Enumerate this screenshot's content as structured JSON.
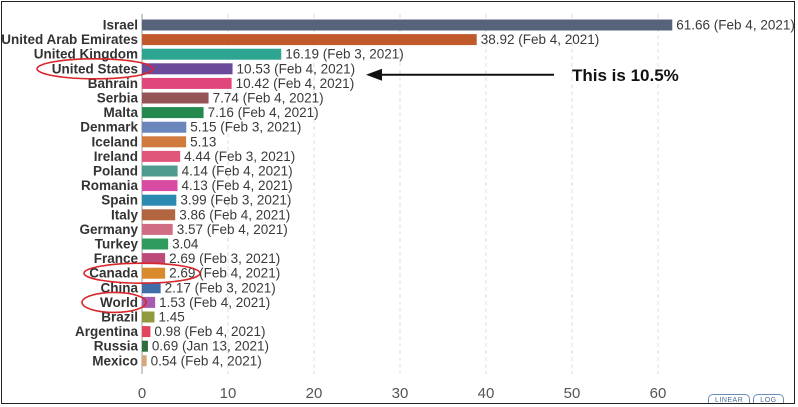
{
  "chart_data": {
    "type": "bar",
    "orientation": "horizontal",
    "categories": [
      "Israel",
      "United Arab Emirates",
      "United Kingdom",
      "United States",
      "Bahrain",
      "Serbia",
      "Malta",
      "Denmark",
      "Iceland",
      "Ireland",
      "Poland",
      "Romania",
      "Spain",
      "Italy",
      "Germany",
      "Turkey",
      "France",
      "Canada",
      "China",
      "World",
      "Brazil",
      "Argentina",
      "Russia",
      "Mexico"
    ],
    "values": [
      61.66,
      38.92,
      16.19,
      10.53,
      10.42,
      7.74,
      7.16,
      5.15,
      5.13,
      4.44,
      4.14,
      4.13,
      3.99,
      3.86,
      3.57,
      3.04,
      2.69,
      2.69,
      2.17,
      1.53,
      1.45,
      0.98,
      0.69,
      0.54
    ],
    "value_labels": [
      "61.66 (Feb 4, 2021)",
      "38.92 (Feb 4, 2021)",
      "16.19 (Feb 3, 2021)",
      "10.53 (Feb 4, 2021)",
      "10.42 (Feb 4, 2021)",
      "7.74 (Feb 4, 2021)",
      "7.16 (Feb 4, 2021)",
      "5.15 (Feb 3, 2021)",
      "5.13",
      "4.44 (Feb 3, 2021)",
      "4.14 (Feb 4, 2021)",
      "4.13 (Feb 4, 2021)",
      "3.99 (Feb 3, 2021)",
      "3.86 (Feb 4, 2021)",
      "3.57 (Feb 4, 2021)",
      "3.04",
      "2.69 (Feb 3, 2021)",
      "2.69 (Feb 4, 2021)",
      "2.17 (Feb 3, 2021)",
      "1.53 (Feb 4, 2021)",
      "1.45",
      "0.98 (Feb 4, 2021)",
      "0.69 (Jan 13, 2021)",
      "0.54 (Feb 4, 2021)"
    ],
    "colors": [
      "#57637b",
      "#c15a2b",
      "#2ea591",
      "#6b4a9c",
      "#e0457c",
      "#975456",
      "#24894f",
      "#6a86bd",
      "#d07a3e",
      "#e0557a",
      "#4f9a8e",
      "#d94aa2",
      "#2b8ab2",
      "#b16640",
      "#d16c85",
      "#2e9b5d",
      "#bb4a7a",
      "#d98a2c",
      "#3f6ea8",
      "#a75bb0",
      "#8f9a3e",
      "#e2465e",
      "#2c6e3c",
      "#d4a878"
    ],
    "xlim": [
      0,
      65
    ],
    "x_ticks": [
      0,
      10,
      20,
      30,
      40,
      50,
      60
    ],
    "grid": "vertical dashed",
    "title": "",
    "xlabel": "",
    "ylabel": "",
    "annotations": {
      "arrow_text": "This is 10.5%",
      "arrow_target": "United States",
      "circled": [
        "United States",
        "Canada",
        "World"
      ]
    }
  },
  "toggle": {
    "linear_label": "LINEAR",
    "log_label": "LOG"
  }
}
